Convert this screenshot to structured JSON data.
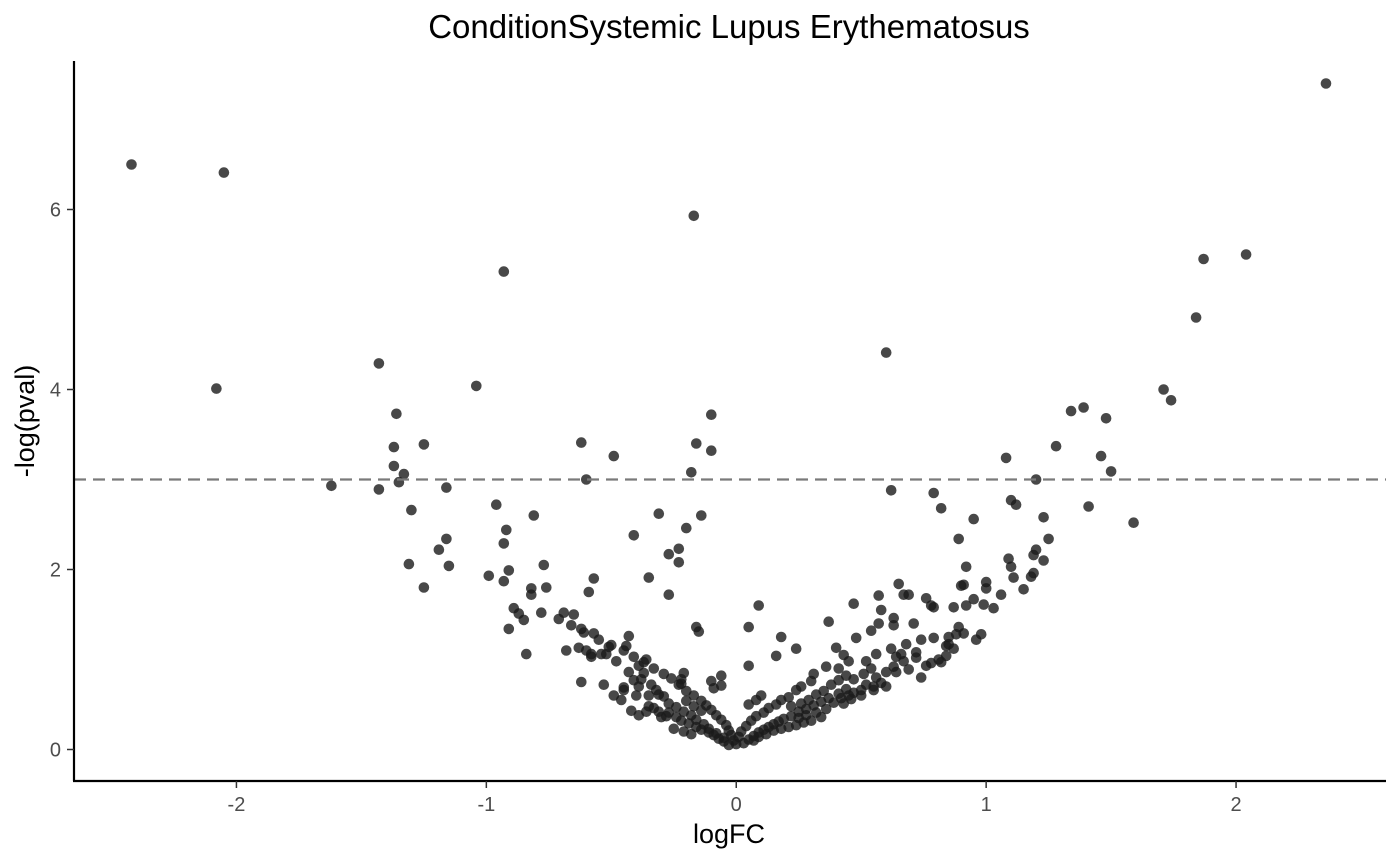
{
  "chart_data": {
    "type": "scatter",
    "title": "ConditionSystemic Lupus Erythematosus",
    "xlabel": "logFC",
    "ylabel": "-log(pval)",
    "xlim": [
      -2.65,
      2.6
    ],
    "ylim": [
      -0.35,
      7.65
    ],
    "xticks": [
      -2,
      -1,
      0,
      1,
      2
    ],
    "xtick_labels": [
      "-2",
      "-1",
      "0",
      "1",
      "2"
    ],
    "yticks": [
      0,
      2,
      4,
      6
    ],
    "ytick_labels": [
      "0",
      "2",
      "4",
      "6"
    ],
    "threshold_y": 3,
    "grid": false,
    "legend": "none",
    "point_color": "#333333",
    "threshold_color": "#7a7a7a",
    "points": [
      [
        -2.42,
        6.5
      ],
      [
        -2.05,
        6.41
      ],
      [
        -2.08,
        4.01
      ],
      [
        2.36,
        7.4
      ],
      [
        -0.17,
        5.93
      ],
      [
        -0.93,
        5.31
      ],
      [
        1.87,
        5.45
      ],
      [
        2.04,
        5.5
      ],
      [
        1.84,
        4.8
      ],
      [
        0.6,
        4.41
      ],
      [
        1.71,
        4.0
      ],
      [
        1.74,
        3.88
      ],
      [
        1.34,
        3.76
      ],
      [
        1.39,
        3.8
      ],
      [
        1.48,
        3.68
      ],
      [
        -1.43,
        4.29
      ],
      [
        -1.04,
        4.04
      ],
      [
        -1.36,
        3.73
      ],
      [
        -1.37,
        3.36
      ],
      [
        -0.1,
        3.72
      ],
      [
        -0.16,
        3.4
      ],
      [
        -0.1,
        3.32
      ],
      [
        -0.62,
        3.41
      ],
      [
        -0.49,
        3.26
      ],
      [
        -1.25,
        3.39
      ],
      [
        -1.37,
        3.15
      ],
      [
        -1.33,
        3.06
      ],
      [
        -1.35,
        2.97
      ],
      [
        -1.43,
        2.89
      ],
      [
        -1.62,
        2.93
      ],
      [
        -1.16,
        2.91
      ],
      [
        -0.6,
        3.0
      ],
      [
        -0.18,
        3.08
      ],
      [
        0.62,
        2.88
      ],
      [
        1.08,
        3.24
      ],
      [
        1.28,
        3.37
      ],
      [
        1.46,
        3.26
      ],
      [
        1.5,
        3.09
      ],
      [
        1.2,
        3.0
      ],
      [
        0.79,
        2.85
      ],
      [
        1.1,
        2.77
      ],
      [
        1.12,
        2.72
      ],
      [
        1.41,
        2.7
      ],
      [
        0.82,
        2.68
      ],
      [
        0.95,
        2.56
      ],
      [
        1.23,
        2.58
      ],
      [
        1.59,
        2.52
      ],
      [
        -0.96,
        2.72
      ],
      [
        -1.3,
        2.66
      ],
      [
        -0.81,
        2.6
      ],
      [
        -0.31,
        2.62
      ],
      [
        -0.14,
        2.6
      ],
      [
        -0.2,
        2.46
      ],
      [
        -0.92,
        2.44
      ],
      [
        -0.93,
        2.29
      ],
      [
        -0.41,
        2.38
      ],
      [
        -1.16,
        2.34
      ],
      [
        -0.23,
        2.23
      ],
      [
        -0.27,
        2.17
      ],
      [
        -1.19,
        2.22
      ],
      [
        -0.23,
        2.08
      ],
      [
        -1.31,
        2.06
      ],
      [
        -1.15,
        2.04
      ],
      [
        -0.77,
        2.05
      ],
      [
        -0.91,
        1.99
      ],
      [
        -0.99,
        1.93
      ],
      [
        -0.35,
        1.91
      ],
      [
        -0.57,
        1.9
      ],
      [
        -0.93,
        1.87
      ],
      [
        -1.25,
        1.8
      ],
      [
        -0.82,
        1.79
      ],
      [
        -0.76,
        1.8
      ],
      [
        -0.59,
        1.75
      ],
      [
        -0.82,
        1.72
      ],
      [
        -0.27,
        1.72
      ],
      [
        0.89,
        2.34
      ],
      [
        1.25,
        2.34
      ],
      [
        0.92,
        2.03
      ],
      [
        1.1,
        2.03
      ],
      [
        1.09,
        2.12
      ],
      [
        1.19,
        2.16
      ],
      [
        1.2,
        2.22
      ],
      [
        1.23,
        2.1
      ],
      [
        1.19,
        1.96
      ],
      [
        1.18,
        1.92
      ],
      [
        1.11,
        1.91
      ],
      [
        1.0,
        1.86
      ],
      [
        0.91,
        1.83
      ],
      [
        0.9,
        1.82
      ],
      [
        0.65,
        1.84
      ],
      [
        1.0,
        1.79
      ],
      [
        1.15,
        1.78
      ],
      [
        1.06,
        1.72
      ],
      [
        0.95,
        1.67
      ],
      [
        0.99,
        1.61
      ],
      [
        1.03,
        1.57
      ],
      [
        0.92,
        1.6
      ],
      [
        0.87,
        1.58
      ],
      [
        0.57,
        1.71
      ],
      [
        0.67,
        1.72
      ],
      [
        0.69,
        1.72
      ],
      [
        0.76,
        1.68
      ],
      [
        0.79,
        1.58
      ],
      [
        0.78,
        1.6
      ],
      [
        0.47,
        1.62
      ],
      [
        0.58,
        1.55
      ],
      [
        0.63,
        1.46
      ],
      [
        0.71,
        1.4
      ],
      [
        0.63,
        1.38
      ],
      [
        0.57,
        1.4
      ],
      [
        0.54,
        1.32
      ],
      [
        0.37,
        1.42
      ],
      [
        0.89,
        1.36
      ],
      [
        0.88,
        1.28
      ],
      [
        0.96,
        1.22
      ],
      [
        0.98,
        1.28
      ],
      [
        0.85,
        1.25
      ],
      [
        0.79,
        1.24
      ],
      [
        0.85,
        1.17
      ],
      [
        0.84,
        1.15
      ],
      [
        0.84,
        1.04
      ],
      [
        0.81,
        1.0
      ],
      [
        0.78,
        0.96
      ],
      [
        0.76,
        0.93
      ],
      [
        0.72,
        1.02
      ],
      [
        0.67,
        0.98
      ],
      [
        0.64,
        1.03
      ],
      [
        0.66,
        1.06
      ],
      [
        0.63,
        0.92
      ],
      [
        0.6,
        0.86
      ],
      [
        0.64,
        0.86
      ],
      [
        0.56,
        0.8
      ],
      [
        0.58,
        0.74
      ],
      [
        0.55,
        0.7
      ],
      [
        0.52,
        0.72
      ],
      [
        0.5,
        0.66
      ],
      [
        0.47,
        0.63
      ],
      [
        0.48,
        1.24
      ],
      [
        0.4,
        1.13
      ],
      [
        0.43,
        1.05
      ],
      [
        0.45,
        0.98
      ],
      [
        0.41,
        0.9
      ],
      [
        0.36,
        0.92
      ],
      [
        0.31,
        0.84
      ],
      [
        0.3,
        0.76
      ],
      [
        0.26,
        0.7
      ],
      [
        0.24,
        0.66
      ],
      [
        0.21,
        0.58
      ],
      [
        0.18,
        0.55
      ],
      [
        0.16,
        0.5
      ],
      [
        0.13,
        0.46
      ],
      [
        0.11,
        0.41
      ],
      [
        0.08,
        0.37
      ],
      [
        0.06,
        0.32
      ],
      [
        0.04,
        0.26
      ],
      [
        0.02,
        0.2
      ],
      [
        0.01,
        0.14
      ],
      [
        0.0,
        0.06
      ],
      [
        -0.01,
        0.1
      ],
      [
        -0.02,
        0.16
      ],
      [
        -0.03,
        0.21
      ],
      [
        -0.04,
        0.27
      ],
      [
        -0.06,
        0.33
      ],
      [
        -0.08,
        0.38
      ],
      [
        -0.1,
        0.44
      ],
      [
        -0.12,
        0.49
      ],
      [
        -0.14,
        0.54
      ],
      [
        -0.17,
        0.6
      ],
      [
        -0.2,
        0.65
      ],
      [
        -0.23,
        0.72
      ],
      [
        -0.26,
        0.79
      ],
      [
        -0.29,
        0.84
      ],
      [
        -0.33,
        0.9
      ],
      [
        -0.37,
        0.97
      ],
      [
        -0.41,
        1.03
      ],
      [
        -0.45,
        1.1
      ],
      [
        -0.5,
        1.16
      ],
      [
        -0.55,
        1.22
      ],
      [
        -0.61,
        1.3
      ],
      [
        -0.66,
        1.38
      ],
      [
        -0.71,
        1.45
      ],
      [
        -0.58,
        1.03
      ],
      [
        -0.54,
        1.06
      ],
      [
        -0.48,
        0.98
      ],
      [
        -0.43,
        0.86
      ],
      [
        -0.41,
        0.77
      ],
      [
        -0.45,
        0.69
      ],
      [
        -0.49,
        0.6
      ],
      [
        -0.53,
        0.72
      ],
      [
        -0.62,
        0.75
      ],
      [
        -0.6,
        1.1
      ],
      [
        -0.63,
        1.13
      ],
      [
        -0.57,
        1.29
      ],
      [
        -0.65,
        1.5
      ],
      [
        -0.69,
        1.52
      ],
      [
        -0.43,
        1.26
      ],
      [
        -0.36,
        1.0
      ],
      [
        -0.39,
        0.93
      ],
      [
        -0.37,
        0.85
      ],
      [
        -0.39,
        0.7
      ],
      [
        -0.35,
        0.6
      ],
      [
        -0.32,
        0.66
      ],
      [
        -0.29,
        0.59
      ],
      [
        -0.33,
        0.46
      ],
      [
        -0.36,
        0.42
      ],
      [
        -0.39,
        0.38
      ],
      [
        -0.42,
        0.43
      ],
      [
        -0.3,
        0.36
      ],
      [
        -0.27,
        0.41
      ],
      [
        -0.24,
        0.36
      ],
      [
        -0.22,
        0.32
      ],
      [
        -0.19,
        0.29
      ],
      [
        -0.16,
        0.25
      ],
      [
        -0.14,
        0.22
      ],
      [
        -0.11,
        0.19
      ],
      [
        -0.09,
        0.16
      ],
      [
        -0.07,
        0.12
      ],
      [
        -0.05,
        0.09
      ],
      [
        -0.03,
        0.05
      ],
      [
        0.03,
        0.07
      ],
      [
        0.05,
        0.11
      ],
      [
        0.07,
        0.15
      ],
      [
        0.09,
        0.19
      ],
      [
        0.11,
        0.22
      ],
      [
        0.13,
        0.25
      ],
      [
        0.15,
        0.28
      ],
      [
        0.17,
        0.31
      ],
      [
        0.19,
        0.34
      ],
      [
        0.22,
        0.37
      ],
      [
        0.25,
        0.42
      ],
      [
        0.28,
        0.45
      ],
      [
        0.31,
        0.49
      ],
      [
        0.34,
        0.53
      ],
      [
        0.37,
        0.57
      ],
      [
        0.41,
        0.62
      ],
      [
        0.44,
        0.67
      ],
      [
        0.34,
        0.36
      ],
      [
        0.3,
        0.32
      ],
      [
        0.27,
        0.3
      ],
      [
        0.24,
        0.27
      ],
      [
        0.21,
        0.25
      ],
      [
        0.18,
        0.23
      ],
      [
        0.15,
        0.21
      ],
      [
        0.12,
        0.17
      ],
      [
        0.09,
        0.14
      ],
      [
        0.07,
        0.1
      ],
      [
        -0.05,
        0.13
      ],
      [
        -0.08,
        0.18
      ],
      [
        -0.11,
        0.23
      ],
      [
        -0.13,
        0.28
      ],
      [
        -0.16,
        0.33
      ],
      [
        -0.18,
        0.38
      ],
      [
        -0.21,
        0.42
      ],
      [
        -0.24,
        0.47
      ],
      [
        -0.27,
        0.51
      ],
      [
        -0.21,
        0.2
      ],
      [
        -0.18,
        0.17
      ],
      [
        -0.25,
        0.23
      ],
      [
        0.05,
        0.5
      ],
      [
        0.08,
        0.55
      ],
      [
        0.1,
        0.6
      ],
      [
        0.16,
        1.04
      ],
      [
        0.18,
        1.25
      ],
      [
        0.24,
        1.12
      ],
      [
        0.05,
        0.93
      ],
      [
        0.09,
        1.6
      ],
      [
        0.05,
        1.36
      ],
      [
        -0.1,
        0.76
      ],
      [
        -0.06,
        0.82
      ],
      [
        -0.06,
        0.71
      ],
      [
        -0.09,
        0.68
      ],
      [
        -0.16,
        1.36
      ],
      [
        -0.15,
        1.31
      ],
      [
        -0.21,
        0.85
      ],
      [
        -0.22,
        0.78
      ],
      [
        -0.22,
        0.73
      ],
      [
        -0.31,
        0.61
      ],
      [
        -0.52,
        1.06
      ],
      [
        -0.4,
        0.6
      ],
      [
        -0.46,
        0.55
      ],
      [
        -0.35,
        0.48
      ],
      [
        -0.31,
        0.42
      ],
      [
        -0.28,
        0.37
      ],
      [
        -0.2,
        0.54
      ],
      [
        -0.17,
        0.48
      ],
      [
        -0.14,
        0.43
      ],
      [
        0.22,
        0.48
      ],
      [
        0.26,
        0.51
      ],
      [
        0.29,
        0.55
      ],
      [
        0.32,
        0.61
      ],
      [
        0.35,
        0.65
      ],
      [
        0.38,
        0.72
      ],
      [
        0.41,
        0.77
      ],
      [
        0.44,
        0.82
      ],
      [
        0.47,
        0.78
      ],
      [
        0.51,
        0.84
      ],
      [
        0.54,
        0.9
      ],
      [
        0.39,
        0.52
      ],
      [
        0.42,
        0.57
      ],
      [
        0.45,
        0.6
      ],
      [
        0.36,
        0.45
      ],
      [
        0.32,
        0.41
      ],
      [
        0.28,
        0.38
      ],
      [
        0.25,
        0.35
      ],
      [
        -0.78,
        1.52
      ],
      [
        -0.85,
        1.44
      ],
      [
        -0.89,
        1.57
      ],
      [
        -0.87,
        1.51
      ],
      [
        -0.84,
        1.06
      ],
      [
        -0.91,
        1.34
      ],
      [
        -0.62,
        1.34
      ],
      [
        -0.68,
        1.1
      ],
      [
        -0.58,
        1.06
      ],
      [
        -0.51,
        1.14
      ],
      [
        -0.44,
        1.15
      ],
      [
        -0.38,
        0.78
      ],
      [
        -0.34,
        0.72
      ],
      [
        -0.45,
        0.66
      ],
      [
        0.52,
        0.98
      ],
      [
        0.56,
        1.06
      ],
      [
        0.62,
        1.12
      ],
      [
        0.68,
        1.17
      ],
      [
        0.74,
        1.22
      ],
      [
        0.72,
        1.08
      ],
      [
        0.69,
        0.89
      ],
      [
        0.74,
        0.8
      ],
      [
        0.82,
        0.97
      ],
      [
        0.87,
        1.12
      ],
      [
        0.91,
        1.29
      ],
      [
        0.6,
        0.7
      ],
      [
        0.55,
        0.66
      ],
      [
        0.5,
        0.6
      ],
      [
        0.46,
        0.56
      ],
      [
        0.43,
        0.51
      ]
    ]
  }
}
